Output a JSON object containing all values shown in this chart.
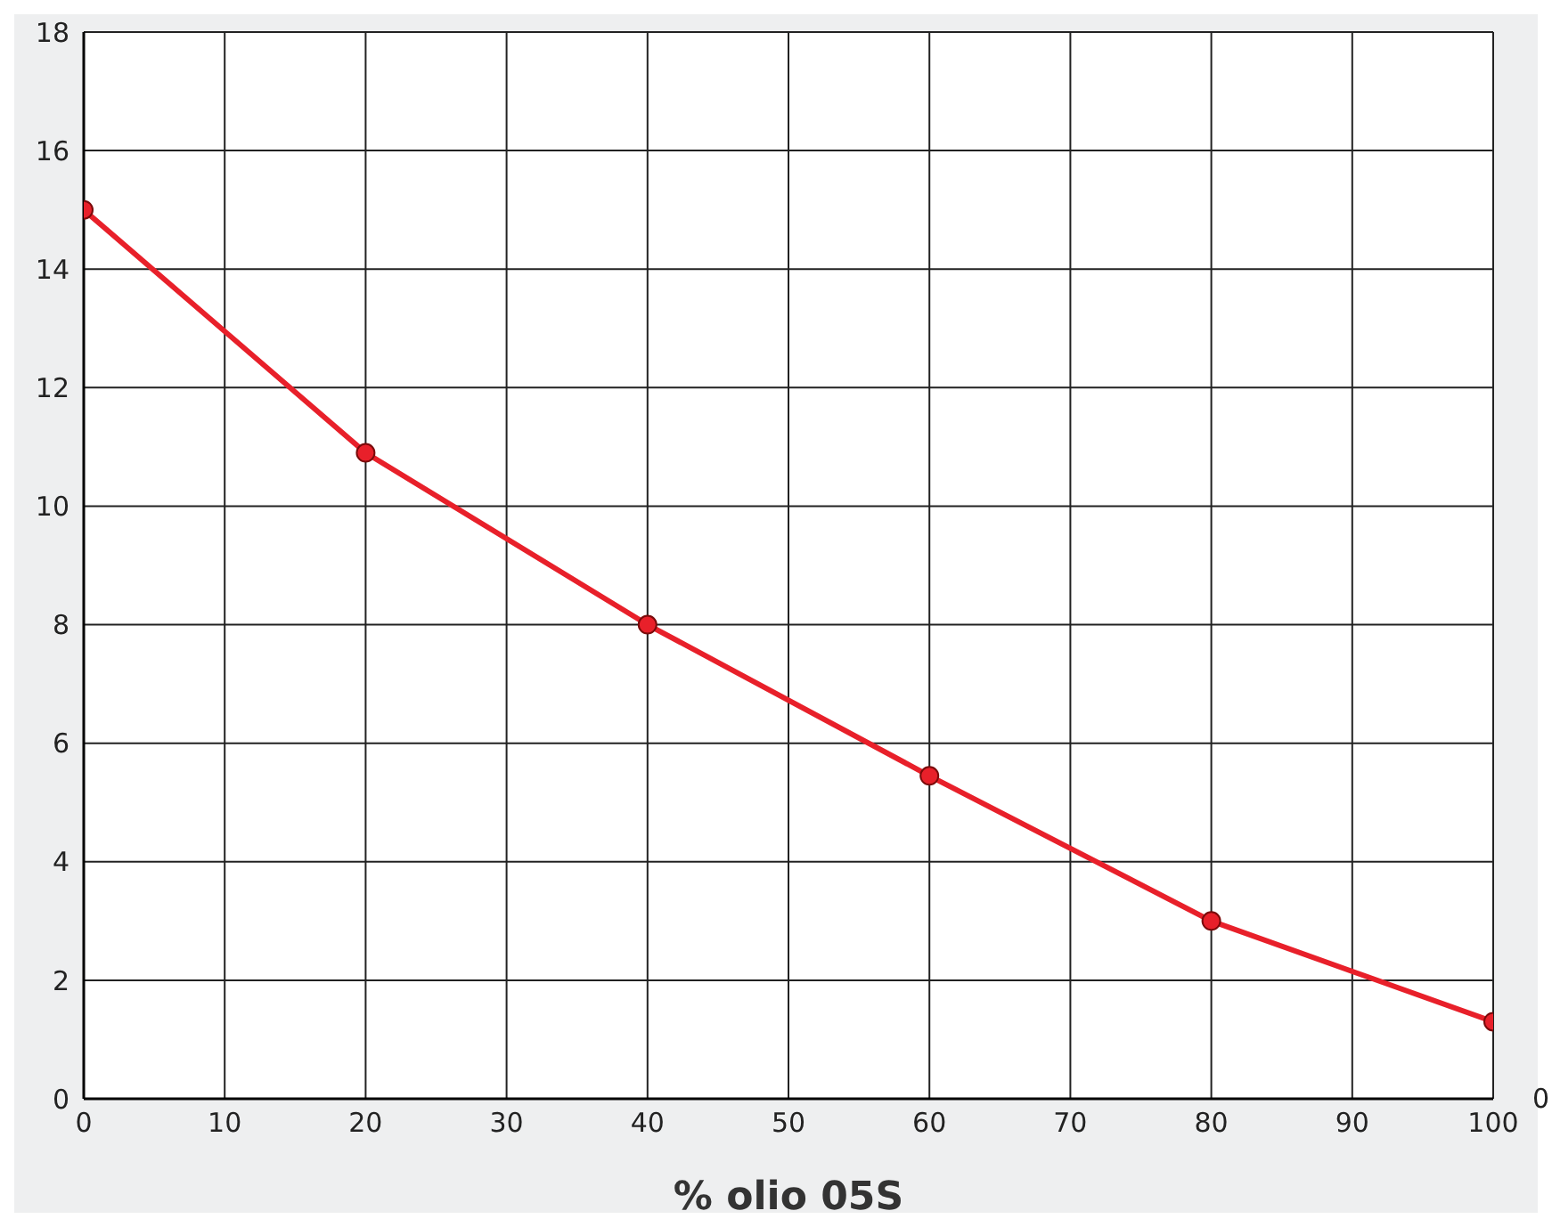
{
  "chart_data": {
    "type": "line",
    "xlabel": "% olio 05S",
    "x": [
      0,
      20,
      40,
      60,
      80,
      100
    ],
    "series": [
      {
        "color": "#e8202a",
        "values": [
          15,
          10.9,
          8,
          5.45,
          3,
          1.3
        ]
      }
    ],
    "xlim": [
      0,
      100
    ],
    "xticks": [
      0,
      10,
      20,
      30,
      40,
      50,
      60,
      70,
      80,
      90,
      100
    ],
    "ylim": [
      0,
      18
    ],
    "yticks": [
      0,
      2,
      4,
      6,
      8,
      10,
      12,
      14,
      16,
      18
    ],
    "grid": true,
    "marker": "circle",
    "line_style": "solid",
    "legend": false,
    "annotations": [
      "0"
    ]
  }
}
